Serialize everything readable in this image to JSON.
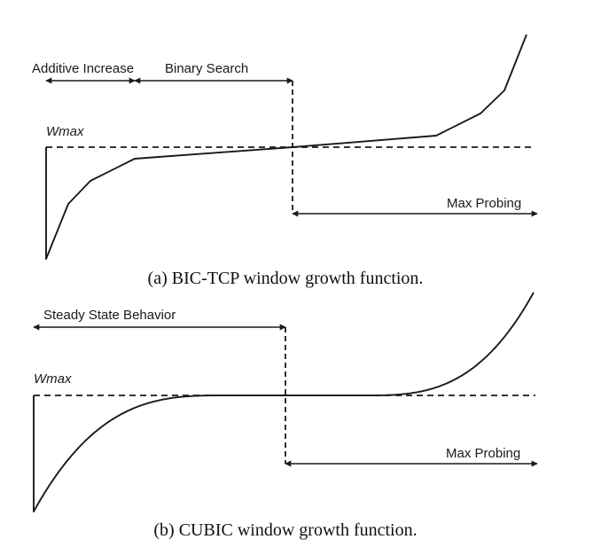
{
  "panel_a": {
    "labels": {
      "additive_increase": "Additive Increase",
      "binary_search": "Binary Search",
      "wmax": "Wmax",
      "max_probing": "Max Probing"
    },
    "caption": "(a) BIC-TCP window growth function."
  },
  "panel_b": {
    "labels": {
      "steady_state": "Steady State Behavior",
      "wmax": "Wmax",
      "max_probing": "Max Probing"
    },
    "caption": "(b) CUBIC window growth function."
  },
  "colors": {
    "ink": "#1a1a1a",
    "background": "#ffffff"
  }
}
